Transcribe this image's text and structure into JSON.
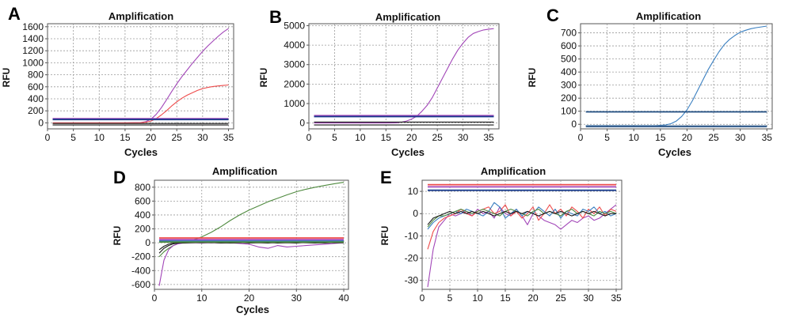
{
  "colors": {
    "purple": "#a246b8",
    "red": "#ee4b4b",
    "blue": "#3a7fc0",
    "navy": "#183a8c",
    "darkblue": "#1f4c80",
    "green": "#4f8a3f",
    "black": "#1a1a1a",
    "grid": "#9a9a9a"
  },
  "chart_data": [
    {
      "panel": "A",
      "type": "line",
      "title": "Amplification",
      "xlabel": "Cycles",
      "ylabel": "RFU",
      "xlim": [
        0,
        36
      ],
      "ylim": [
        -100,
        1650
      ],
      "xticks": [
        0,
        5,
        10,
        15,
        20,
        25,
        30,
        35
      ],
      "yticks": [
        0,
        200,
        400,
        600,
        800,
        1000,
        1200,
        1400,
        1600
      ],
      "grid": true,
      "series": [
        {
          "color": "purple",
          "x": [
            1,
            5,
            10,
            15,
            18,
            19,
            20,
            21,
            22,
            23,
            24,
            25,
            26,
            27,
            28,
            29,
            30,
            31,
            32,
            33,
            34,
            35
          ],
          "y": [
            0,
            0,
            0,
            0,
            5,
            20,
            60,
            140,
            250,
            380,
            520,
            650,
            770,
            880,
            990,
            1090,
            1190,
            1280,
            1360,
            1440,
            1510,
            1570
          ]
        },
        {
          "color": "red",
          "x": [
            1,
            5,
            10,
            15,
            18,
            19,
            20,
            21,
            22,
            23,
            24,
            25,
            26,
            27,
            28,
            29,
            30,
            31,
            32,
            33,
            34,
            35
          ],
          "y": [
            0,
            0,
            0,
            0,
            3,
            10,
            30,
            70,
            130,
            200,
            280,
            350,
            410,
            460,
            500,
            540,
            570,
            590,
            605,
            615,
            622,
            630
          ]
        },
        {
          "color": "black",
          "x": [
            1,
            35
          ],
          "y": [
            -10,
            -10
          ]
        },
        {
          "color": "black",
          "x": [
            1,
            35
          ],
          "y": [
            -35,
            -35
          ]
        },
        {
          "color": "purple",
          "x": [
            1,
            35
          ],
          "y": [
            70,
            70
          ],
          "threshold": true
        },
        {
          "color": "navy",
          "x": [
            1,
            35
          ],
          "y": [
            55,
            55
          ],
          "threshold": true
        }
      ]
    },
    {
      "panel": "B",
      "type": "line",
      "title": "Amplification",
      "xlabel": "Cycles",
      "ylabel": "RFU",
      "xlim": [
        0,
        37
      ],
      "ylim": [
        -300,
        5100
      ],
      "xticks": [
        0,
        5,
        10,
        15,
        20,
        25,
        30,
        35
      ],
      "yticks": [
        0,
        1000,
        2000,
        3000,
        4000,
        5000
      ],
      "grid": true,
      "series": [
        {
          "color": "purple",
          "x": [
            1,
            5,
            10,
            15,
            17,
            18,
            19,
            20,
            21,
            22,
            23,
            24,
            25,
            26,
            27,
            28,
            29,
            30,
            31,
            32,
            33,
            34,
            35,
            36
          ],
          "y": [
            0,
            0,
            0,
            0,
            10,
            40,
            100,
            200,
            350,
            600,
            900,
            1300,
            1800,
            2300,
            2800,
            3300,
            3750,
            4100,
            4400,
            4600,
            4700,
            4780,
            4820,
            4850
          ]
        },
        {
          "color": "black",
          "x": [
            1,
            36
          ],
          "y": [
            50,
            50
          ]
        },
        {
          "color": "black",
          "x": [
            1,
            36
          ],
          "y": [
            -100,
            -100
          ]
        },
        {
          "color": "purple",
          "x": [
            1,
            36
          ],
          "y": [
            380,
            380
          ],
          "threshold": true
        },
        {
          "color": "navy",
          "x": [
            1,
            36
          ],
          "y": [
            330,
            330
          ],
          "threshold": true
        }
      ]
    },
    {
      "panel": "C",
      "type": "line",
      "title": "Amplification",
      "xlabel": "Cycles",
      "ylabel": "RFU",
      "xlim": [
        0,
        36
      ],
      "ylim": [
        -35,
        770
      ],
      "xticks": [
        0,
        5,
        10,
        15,
        20,
        25,
        30,
        35
      ],
      "yticks": [
        0,
        100,
        200,
        300,
        400,
        500,
        600,
        700
      ],
      "grid": true,
      "series": [
        {
          "color": "blue",
          "x": [
            1,
            5,
            10,
            14,
            15,
            16,
            17,
            18,
            19,
            20,
            21,
            22,
            23,
            24,
            25,
            26,
            27,
            28,
            29,
            30,
            31,
            32,
            33,
            34,
            35
          ],
          "y": [
            -10,
            -10,
            -10,
            -10,
            -8,
            -5,
            5,
            25,
            60,
            110,
            180,
            260,
            340,
            420,
            490,
            555,
            610,
            650,
            680,
            705,
            720,
            732,
            740,
            746,
            752
          ]
        },
        {
          "color": "darkblue",
          "x": [
            1,
            35
          ],
          "y": [
            -12,
            -12
          ]
        },
        {
          "color": "darkblue",
          "x": [
            1,
            35
          ],
          "y": [
            -20,
            -20
          ]
        },
        {
          "color": "darkblue",
          "x": [
            1,
            35
          ],
          "y": [
            95,
            95
          ],
          "threshold": true
        }
      ]
    },
    {
      "panel": "D",
      "type": "line",
      "title": "Amplification",
      "xlabel": "Cycles",
      "ylabel": "RFU",
      "xlim": [
        0,
        41
      ],
      "ylim": [
        -670,
        900
      ],
      "xticks": [
        0,
        10,
        20,
        30,
        40
      ],
      "yticks": [
        -600,
        -400,
        -200,
        0,
        200,
        400,
        600,
        800
      ],
      "grid": true,
      "series": [
        {
          "color": "green",
          "x": [
            1,
            2,
            3,
            4,
            5,
            6,
            7,
            8,
            9,
            10,
            12,
            14,
            16,
            18,
            20,
            22,
            24,
            26,
            28,
            30,
            32,
            34,
            36,
            38,
            40
          ],
          "y": [
            -200,
            -130,
            -80,
            -40,
            -10,
            10,
            25,
            40,
            60,
            85,
            150,
            230,
            320,
            400,
            470,
            530,
            590,
            640,
            690,
            735,
            770,
            800,
            825,
            850,
            870
          ]
        },
        {
          "color": "purple",
          "x": [
            1,
            2,
            3,
            4,
            5,
            6,
            8,
            10,
            12,
            14,
            16,
            18,
            20,
            22,
            24,
            26,
            28,
            30,
            32,
            34,
            36,
            38,
            40
          ],
          "y": [
            -620,
            -250,
            -100,
            -40,
            -15,
            -5,
            0,
            -5,
            0,
            -5,
            0,
            -10,
            -20,
            -60,
            -80,
            -40,
            -60,
            -50,
            -40,
            -30,
            -20,
            -10,
            0
          ]
        },
        {
          "color": "black",
          "x": [
            1,
            2,
            3,
            4,
            5,
            6,
            8,
            10,
            12,
            14,
            16,
            18,
            20,
            22,
            24,
            26,
            28,
            30,
            32,
            34,
            36,
            38,
            40
          ],
          "y": [
            -150,
            -80,
            -40,
            -15,
            -5,
            0,
            5,
            0,
            5,
            -5,
            0,
            5,
            -5,
            0,
            5,
            -5,
            0,
            5,
            0,
            -5,
            5,
            0,
            0
          ]
        },
        {
          "color": "black",
          "x": [
            1,
            2,
            3,
            4,
            5,
            6,
            8,
            10,
            12,
            14,
            16,
            18,
            20,
            22,
            24,
            26,
            28,
            30,
            32,
            34,
            36,
            38,
            40
          ],
          "y": [
            -100,
            -50,
            -20,
            -5,
            0,
            -5,
            0,
            5,
            0,
            5,
            -5,
            0,
            5,
            0,
            -5,
            5,
            0,
            -5,
            5,
            0,
            -5,
            5,
            0
          ]
        },
        {
          "color": "red",
          "x": [
            1,
            40
          ],
          "y": [
            70,
            70
          ],
          "threshold": true
        },
        {
          "color": "purple",
          "x": [
            1,
            40
          ],
          "y": [
            45,
            45
          ],
          "threshold": true
        },
        {
          "color": "blue",
          "x": [
            1,
            40
          ],
          "y": [
            25,
            25
          ],
          "threshold": true
        },
        {
          "color": "green",
          "x": [
            1,
            40
          ],
          "y": [
            10,
            10
          ],
          "threshold": true
        }
      ]
    },
    {
      "panel": "E",
      "type": "line",
      "title": "Amplification",
      "xlabel": "",
      "ylabel": "RFU",
      "xlim": [
        0,
        36
      ],
      "ylim": [
        -34,
        15
      ],
      "xticks": [
        0,
        5,
        10,
        15,
        20,
        25,
        30,
        35
      ],
      "yticks": [
        -30,
        -20,
        -10,
        0,
        10
      ],
      "grid": true,
      "series": [
        {
          "color": "purple",
          "x": [
            1,
            2,
            3,
            4,
            5,
            6,
            7,
            8,
            9,
            10,
            11,
            12,
            13,
            14,
            15,
            16,
            17,
            18,
            19,
            20,
            21,
            22,
            23,
            24,
            25,
            26,
            27,
            28,
            29,
            30,
            31,
            32,
            33,
            34,
            35
          ],
          "y": [
            -33,
            -16,
            -6,
            -3,
            0,
            -1,
            0,
            1,
            -1,
            2,
            0,
            1,
            -2,
            3,
            0,
            -1,
            2,
            -1,
            -5,
            0,
            -1,
            -3,
            -4,
            -5,
            -7,
            -5,
            -3,
            -4,
            -2,
            -1,
            -3,
            -2,
            0,
            2,
            4
          ]
        },
        {
          "color": "red",
          "x": [
            1,
            2,
            3,
            4,
            5,
            6,
            7,
            8,
            9,
            10,
            11,
            12,
            13,
            14,
            15,
            16,
            17,
            18,
            19,
            20,
            21,
            22,
            23,
            24,
            25,
            26,
            27,
            28,
            29,
            30,
            31,
            32,
            33,
            34,
            35
          ],
          "y": [
            -16,
            -8,
            -4,
            -2,
            -1,
            0,
            2,
            0,
            -1,
            1,
            2,
            3,
            0,
            1,
            4,
            -1,
            1,
            -2,
            0,
            3,
            -3,
            0,
            4,
            0,
            2,
            -1,
            3,
            1,
            -2,
            2,
            0,
            3,
            -1,
            2,
            1
          ]
        },
        {
          "color": "blue",
          "x": [
            1,
            2,
            3,
            4,
            5,
            6,
            7,
            8,
            9,
            10,
            11,
            12,
            13,
            14,
            15,
            16,
            17,
            18,
            19,
            20,
            21,
            22,
            23,
            24,
            25,
            26,
            27,
            28,
            29,
            30,
            31,
            32,
            33,
            34,
            35
          ],
          "y": [
            -7,
            -4,
            -2,
            -1,
            0,
            1,
            0,
            2,
            1,
            0,
            -1,
            1,
            5,
            3,
            -2,
            0,
            2,
            -1,
            1,
            0,
            3,
            1,
            -1,
            2,
            -2,
            1,
            0,
            -1,
            2,
            1,
            3,
            0,
            1,
            -1,
            0
          ]
        },
        {
          "color": "green",
          "x": [
            1,
            2,
            3,
            4,
            5,
            6,
            7,
            8,
            9,
            10,
            11,
            12,
            13,
            14,
            15,
            16,
            17,
            18,
            19,
            20,
            21,
            22,
            23,
            24,
            25,
            26,
            27,
            28,
            29,
            30,
            31,
            32,
            33,
            34,
            35
          ],
          "y": [
            -6,
            -3,
            -1,
            -1,
            0,
            1,
            2,
            1,
            0,
            1,
            2,
            1,
            0,
            -1,
            1,
            2,
            1,
            0,
            -1,
            1,
            2,
            0,
            1,
            0,
            -1,
            1,
            2,
            0,
            1,
            0,
            -1,
            1,
            0,
            1,
            0
          ]
        },
        {
          "color": "black",
          "x": [
            1,
            2,
            3,
            4,
            5,
            6,
            7,
            8,
            9,
            10,
            11,
            12,
            13,
            14,
            15,
            16,
            17,
            18,
            19,
            20,
            21,
            22,
            23,
            24,
            25,
            26,
            27,
            28,
            29,
            30,
            31,
            32,
            33,
            34,
            35
          ],
          "y": [
            -5,
            -2,
            -1,
            0,
            1,
            0,
            1,
            0,
            1,
            0,
            1,
            0,
            -1,
            0,
            1,
            0,
            1,
            0,
            1,
            0,
            -1,
            0,
            1,
            0,
            1,
            0,
            -1,
            0,
            1,
            0,
            1,
            0,
            -1,
            0,
            0
          ]
        },
        {
          "color": "red",
          "x": [
            1,
            35
          ],
          "y": [
            13,
            13
          ],
          "threshold": true
        },
        {
          "color": "purple",
          "x": [
            1,
            35
          ],
          "y": [
            12,
            12
          ],
          "threshold": true
        },
        {
          "color": "navy",
          "x": [
            1,
            35
          ],
          "y": [
            10.5,
            10.5
          ],
          "threshold": true
        }
      ]
    }
  ]
}
